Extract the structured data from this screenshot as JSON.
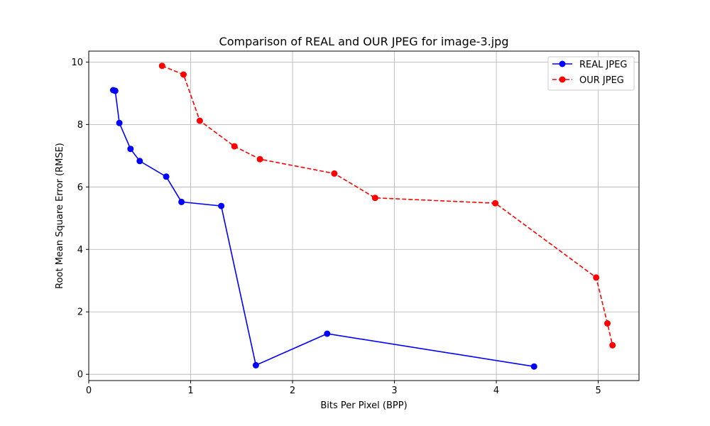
{
  "chart_data": {
    "type": "line",
    "title": "Comparison of REAL and OUR JPEG for image-3.jpg",
    "xlabel": "Bits Per Pixel (BPP)",
    "ylabel": "Root Mean Square Error (RMSE)",
    "xlim": [
      0,
      5.4
    ],
    "ylim": [
      -0.2,
      10.35
    ],
    "xticks": [
      0,
      1,
      2,
      3,
      4,
      5
    ],
    "yticks": [
      0,
      2,
      4,
      6,
      8,
      10
    ],
    "grid": true,
    "legend_position": "top-right",
    "series": [
      {
        "name": "REAL JPEG",
        "color": "#0000ff",
        "linestyle": "solid",
        "marker": "circle",
        "points": [
          [
            0.24,
            9.1
          ],
          [
            0.26,
            9.08
          ],
          [
            0.3,
            8.05
          ],
          [
            0.41,
            7.22
          ],
          [
            0.5,
            6.83
          ],
          [
            0.76,
            6.33
          ],
          [
            0.91,
            5.52
          ],
          [
            1.3,
            5.39
          ],
          [
            1.64,
            0.29
          ],
          [
            2.34,
            1.3
          ],
          [
            4.37,
            0.25
          ]
        ]
      },
      {
        "name": "OUR JPEG",
        "color": "#ff0000",
        "linestyle": "dashed",
        "marker": "circle",
        "points": [
          [
            0.72,
            9.88
          ],
          [
            0.93,
            9.6
          ],
          [
            1.09,
            8.12
          ],
          [
            1.43,
            7.3
          ],
          [
            1.68,
            6.89
          ],
          [
            2.41,
            6.43
          ],
          [
            2.81,
            5.65
          ],
          [
            3.99,
            5.48
          ],
          [
            4.98,
            3.1
          ],
          [
            5.09,
            1.63
          ],
          [
            5.14,
            0.93
          ]
        ]
      }
    ]
  }
}
